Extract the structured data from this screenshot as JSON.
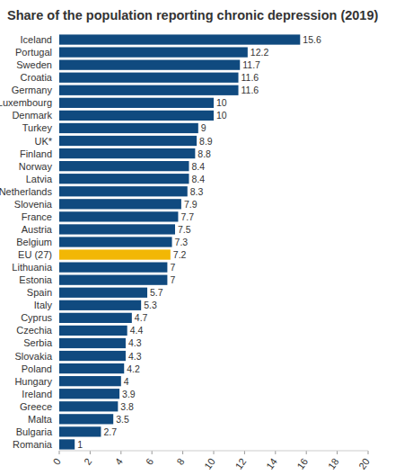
{
  "chart_data": {
    "type": "bar",
    "orientation": "horizontal",
    "title": "Share of the population reporting chronic depression (2019)",
    "categories": [
      "Iceland",
      "Portugal",
      "Sweden",
      "Croatia",
      "Germany",
      "Luxembourg",
      "Denmark",
      "Turkey",
      "UK*",
      "Finland",
      "Norway",
      "Latvia",
      "Netherlands",
      "Slovenia",
      "France",
      "Austria",
      "Belgium",
      "EU (27)",
      "Lithuania",
      "Estonia",
      "Spain",
      "Italy",
      "Cyprus",
      "Czechia",
      "Serbia",
      "Slovakia",
      "Poland",
      "Hungary",
      "Ireland",
      "Greece",
      "Malta",
      "Bulgaria",
      "Romania"
    ],
    "values": [
      15.6,
      12.2,
      11.7,
      11.6,
      11.6,
      10,
      10,
      9,
      8.9,
      8.8,
      8.4,
      8.4,
      8.3,
      7.9,
      7.7,
      7.5,
      7.3,
      7.2,
      7,
      7,
      5.7,
      5.3,
      4.7,
      4.4,
      4.3,
      4.3,
      4.2,
      4,
      3.9,
      3.8,
      3.5,
      2.7,
      1
    ],
    "colors": [
      "#104a7f",
      "#104a7f",
      "#104a7f",
      "#104a7f",
      "#104a7f",
      "#104a7f",
      "#104a7f",
      "#104a7f",
      "#104a7f",
      "#104a7f",
      "#104a7f",
      "#104a7f",
      "#104a7f",
      "#104a7f",
      "#104a7f",
      "#104a7f",
      "#104a7f",
      "#f2b705",
      "#104a7f",
      "#104a7f",
      "#104a7f",
      "#104a7f",
      "#104a7f",
      "#104a7f",
      "#104a7f",
      "#104a7f",
      "#104a7f",
      "#104a7f",
      "#104a7f",
      "#104a7f",
      "#104a7f",
      "#104a7f",
      "#104a7f"
    ],
    "xlim": [
      0,
      20
    ],
    "xticks": [
      0,
      2,
      4,
      6,
      8,
      10,
      12,
      14,
      16,
      18,
      20
    ],
    "grid": false,
    "data_labels": true
  }
}
